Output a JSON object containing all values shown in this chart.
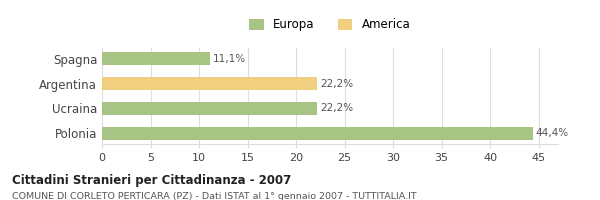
{
  "categories": [
    "Polonia",
    "Ucraina",
    "Argentina",
    "Spagna"
  ],
  "values": [
    44.4,
    22.2,
    22.2,
    11.1
  ],
  "colors": [
    "#a8c484",
    "#a8c484",
    "#f0d080",
    "#a8c484"
  ],
  "labels": [
    "44,4%",
    "22,2%",
    "22,2%",
    "11,1%"
  ],
  "legend": [
    {
      "label": "Europa",
      "color": "#a8c484"
    },
    {
      "label": "America",
      "color": "#f0d080"
    }
  ],
  "xlim": [
    0,
    47
  ],
  "xticks": [
    0,
    5,
    10,
    15,
    20,
    25,
    30,
    35,
    40,
    45
  ],
  "title": "Cittadini Stranieri per Cittadinanza - 2007",
  "subtitle": "COMUNE DI CORLETO PERTICARA (PZ) - Dati ISTAT al 1° gennaio 2007 - TUTTITALIA.IT",
  "bar_height": 0.5,
  "background_color": "#ffffff",
  "grid_color": "#dddddd",
  "text_color": "#444444",
  "label_color": "#555555"
}
